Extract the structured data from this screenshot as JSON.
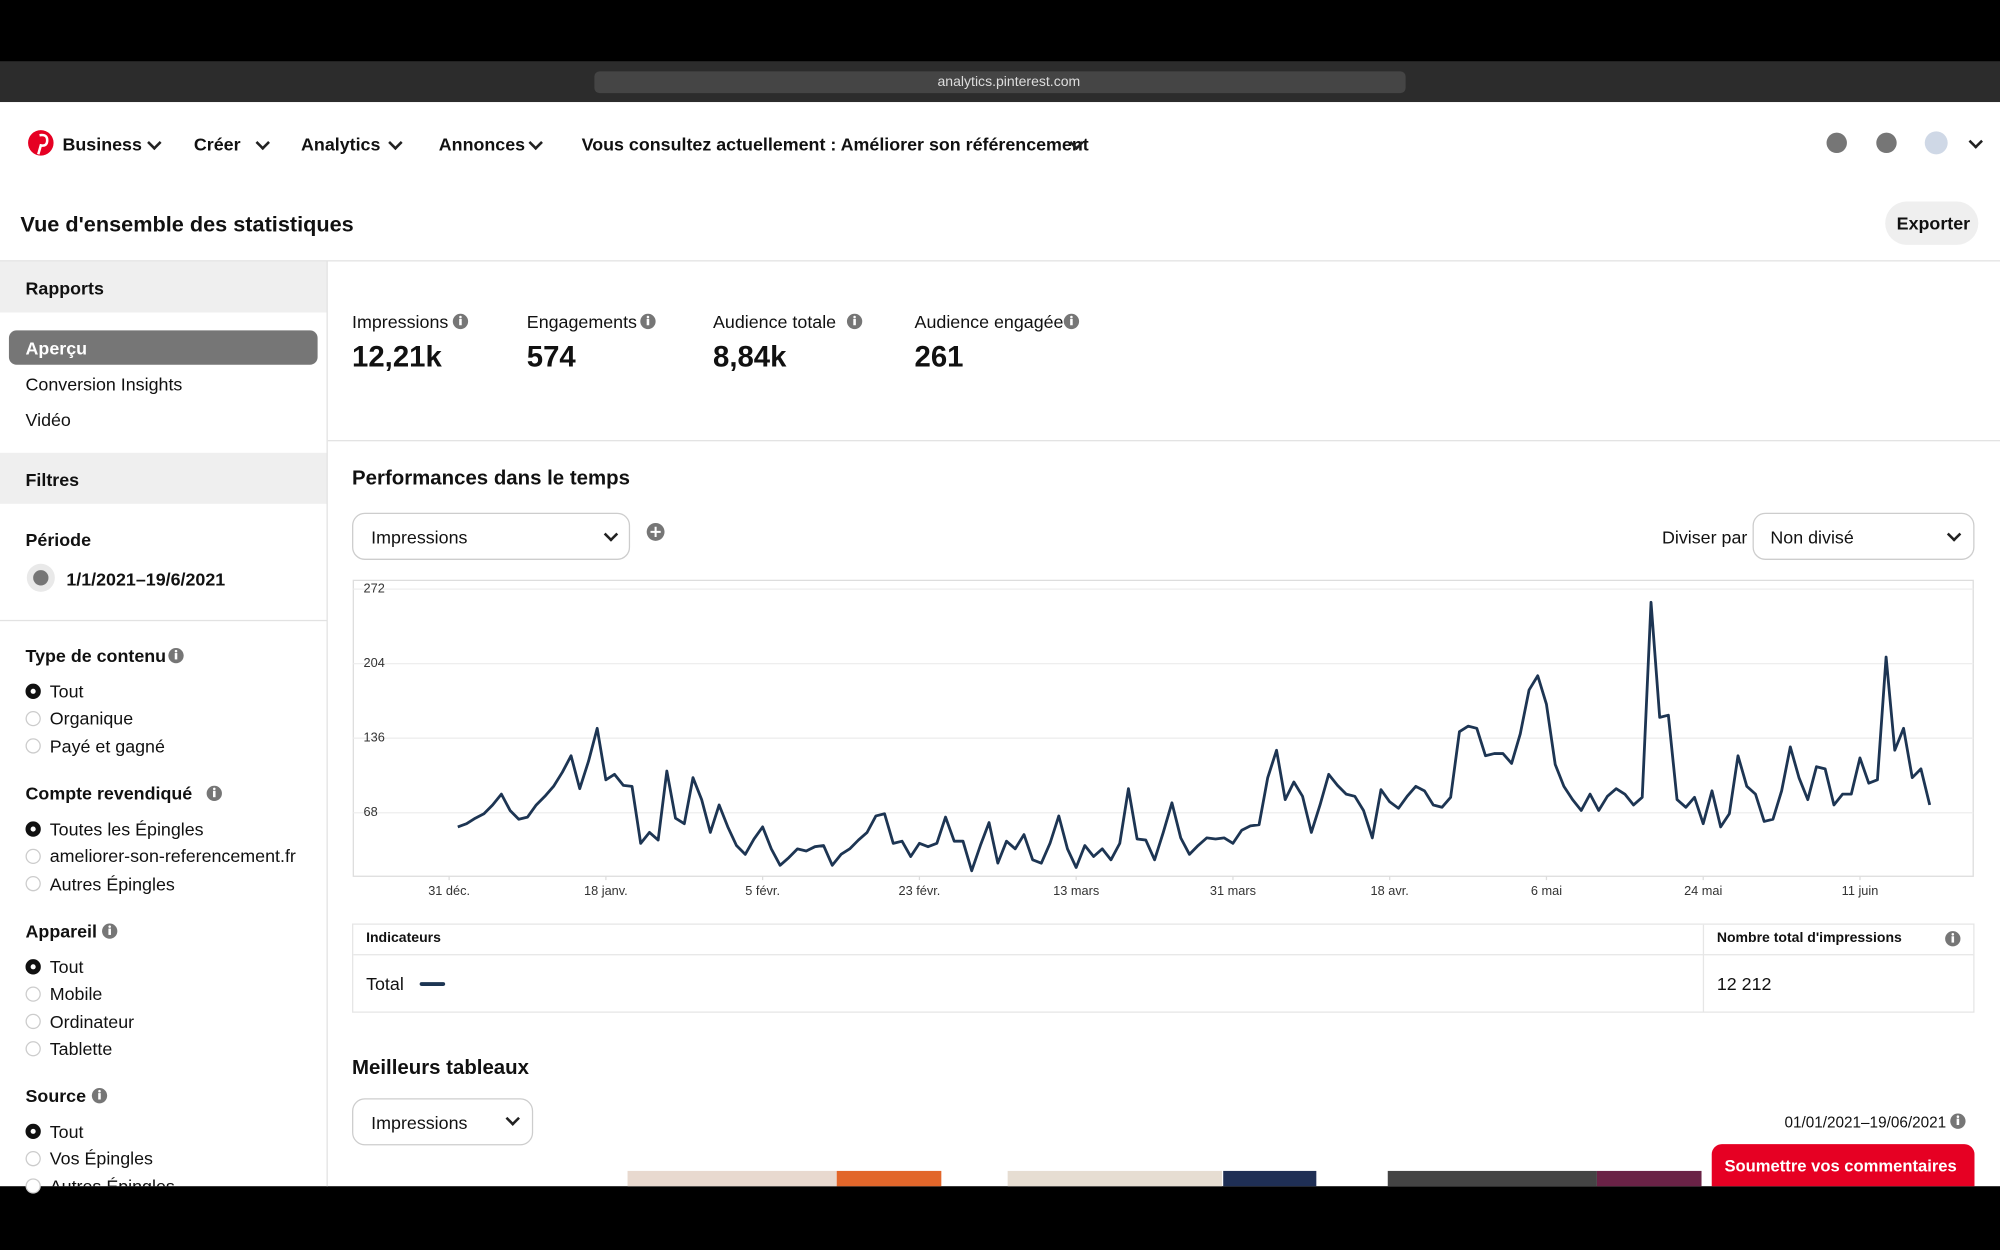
{
  "browser": {
    "url": "analytics.pinterest.com"
  },
  "nav": {
    "items": [
      "Business",
      "Créer",
      "Analytics",
      "Annonces",
      "Vous consultez actuellement : Améliorer son référencement"
    ]
  },
  "header": {
    "title": "Vue d'ensemble des statistiques",
    "export": "Exporter"
  },
  "sidebar": {
    "reports_title": "Rapports",
    "reports": [
      "Aperçu",
      "Conversion Insights",
      "Vidéo"
    ],
    "active_report": 0,
    "filters_title": "Filtres",
    "period_label": "Période",
    "period": "1/1/2021–19/6/2021",
    "groups": [
      {
        "title": "Type de contenu",
        "options": [
          "Tout",
          "Organique",
          "Payé et gagné"
        ],
        "selected": 0
      },
      {
        "title": "Compte revendiqué",
        "options": [
          "Toutes les Épingles",
          "ameliorer-son-referencement.fr",
          "Autres Épingles"
        ],
        "selected": 0
      },
      {
        "title": "Appareil",
        "options": [
          "Tout",
          "Mobile",
          "Ordinateur",
          "Tablette"
        ],
        "selected": 0
      },
      {
        "title": "Source",
        "options": [
          "Tout",
          "Vos Épingles",
          "Autres Épingles"
        ],
        "selected": 0
      }
    ]
  },
  "stats": [
    {
      "label": "Impressions",
      "value": "12,21k"
    },
    {
      "label": "Engagements",
      "value": "574"
    },
    {
      "label": "Audience totale",
      "value": "8,84k"
    },
    {
      "label": "Audience engagée",
      "value": "261"
    }
  ],
  "performance": {
    "title": "Performances dans le temps",
    "metric": "Impressions",
    "split_label": "Diviser par",
    "split": "Non divisé"
  },
  "chart_data": {
    "type": "line",
    "grid": true,
    "series": [
      {
        "name": "Total",
        "color": "#1d3553",
        "values": [
          55,
          58,
          63,
          67,
          75,
          85,
          70,
          62,
          64,
          75,
          83,
          92,
          105,
          120,
          90,
          115,
          145,
          98,
          103,
          93,
          92,
          40,
          50,
          43,
          106,
          63,
          58,
          100,
          80,
          50,
          75,
          55,
          38,
          30,
          44,
          55,
          35,
          20,
          27,
          35,
          33,
          37,
          38,
          20,
          30,
          35,
          43,
          50,
          65,
          67,
          40,
          42,
          28,
          40,
          37,
          40,
          64,
          42,
          42,
          15,
          38,
          59,
          22,
          42,
          35,
          48,
          25,
          22,
          40,
          65,
          35,
          18,
          38,
          28,
          35,
          25,
          40,
          90,
          44,
          43,
          25,
          50,
          77,
          45,
          30,
          38,
          45,
          44,
          45,
          40,
          52,
          56,
          57,
          100,
          125,
          80,
          96,
          83,
          50,
          75,
          103,
          93,
          85,
          83,
          70,
          45,
          89,
          78,
          72,
          83,
          92,
          88,
          75,
          73,
          82,
          142,
          147,
          145,
          120,
          122,
          122,
          113,
          140,
          180,
          193,
          167,
          112,
          92,
          80,
          70,
          85,
          70,
          83,
          90,
          85,
          75,
          82,
          260,
          155,
          157,
          80,
          73,
          82,
          58,
          88,
          55,
          67,
          120,
          92,
          85,
          60,
          62,
          88,
          128,
          100,
          80,
          110,
          108,
          75,
          85,
          85,
          118,
          95,
          98,
          210,
          125,
          145,
          100,
          108,
          75
        ]
      }
    ],
    "xlim": [
      -12,
      174
    ],
    "xticks": [
      {
        "value": -1,
        "label": "31 déc."
      },
      {
        "value": 17,
        "label": "18 janv."
      },
      {
        "value": 35,
        "label": "5 févr."
      },
      {
        "value": 53,
        "label": "23 févr."
      },
      {
        "value": 71,
        "label": "13 mars"
      },
      {
        "value": 89,
        "label": "31 mars"
      },
      {
        "value": 107,
        "label": "18 avr."
      },
      {
        "value": 125,
        "label": "6 mai"
      },
      {
        "value": 143,
        "label": "24 mai"
      },
      {
        "value": 161,
        "label": "11 juin"
      }
    ],
    "ylim": [
      10,
      280
    ],
    "yticks": [
      68,
      136,
      204,
      272
    ]
  },
  "table": {
    "headers": [
      "Indicateurs",
      "Nombre total d'impressions"
    ],
    "rows": [
      {
        "value": "12 212"
      }
    ]
  },
  "best_boards": {
    "title": "Meilleurs tableaux",
    "metric": "Impressions",
    "range": "01/01/2021–19/06/2021",
    "feedback": "Soumettre vos commentaires"
  }
}
